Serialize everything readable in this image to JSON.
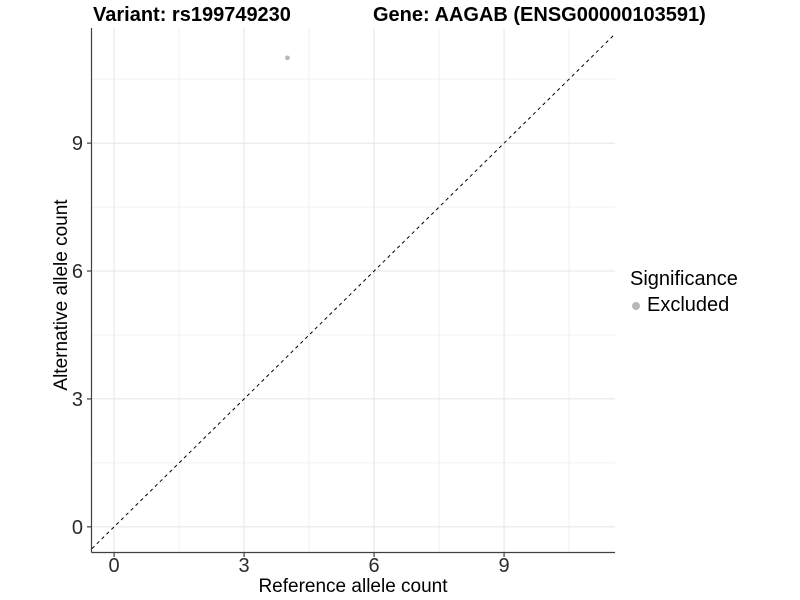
{
  "chart_data": {
    "type": "scatter",
    "title_left": "Variant: rs199749230",
    "title_right": "Gene: AAGAB (ENSG00000103591)",
    "xlabel": "Reference allele count",
    "ylabel": "Alternative allele count",
    "xlim": [
      -0.51,
      11.56
    ],
    "ylim": [
      -0.59,
      11.7
    ],
    "x_major_ticks": [
      0,
      3,
      6,
      9
    ],
    "y_major_ticks": [
      0,
      3,
      6,
      9
    ],
    "x_minor_ticks": [
      1.5,
      4.5,
      7.5,
      10.5
    ],
    "y_minor_ticks": [
      1.5,
      4.5,
      7.5,
      10.5
    ],
    "grid": "on",
    "points": [
      {
        "x": 4,
        "y": 11,
        "series": "Excluded"
      }
    ],
    "abline": {
      "slope": 1,
      "intercept": 0,
      "style": "dashed"
    },
    "legend": {
      "title": "Significance",
      "position": "right",
      "items": [
        {
          "label": "Excluded",
          "marker": "circle-icon",
          "color": "#b8b8b8"
        }
      ]
    },
    "colors": {
      "point": "#b8b8b8",
      "abline": "#000000",
      "grid_major": "#e4e4e4",
      "grid_minor": "#f0f0f0",
      "axis_line": "#404040",
      "tick_label": "#2b2b2b"
    }
  }
}
